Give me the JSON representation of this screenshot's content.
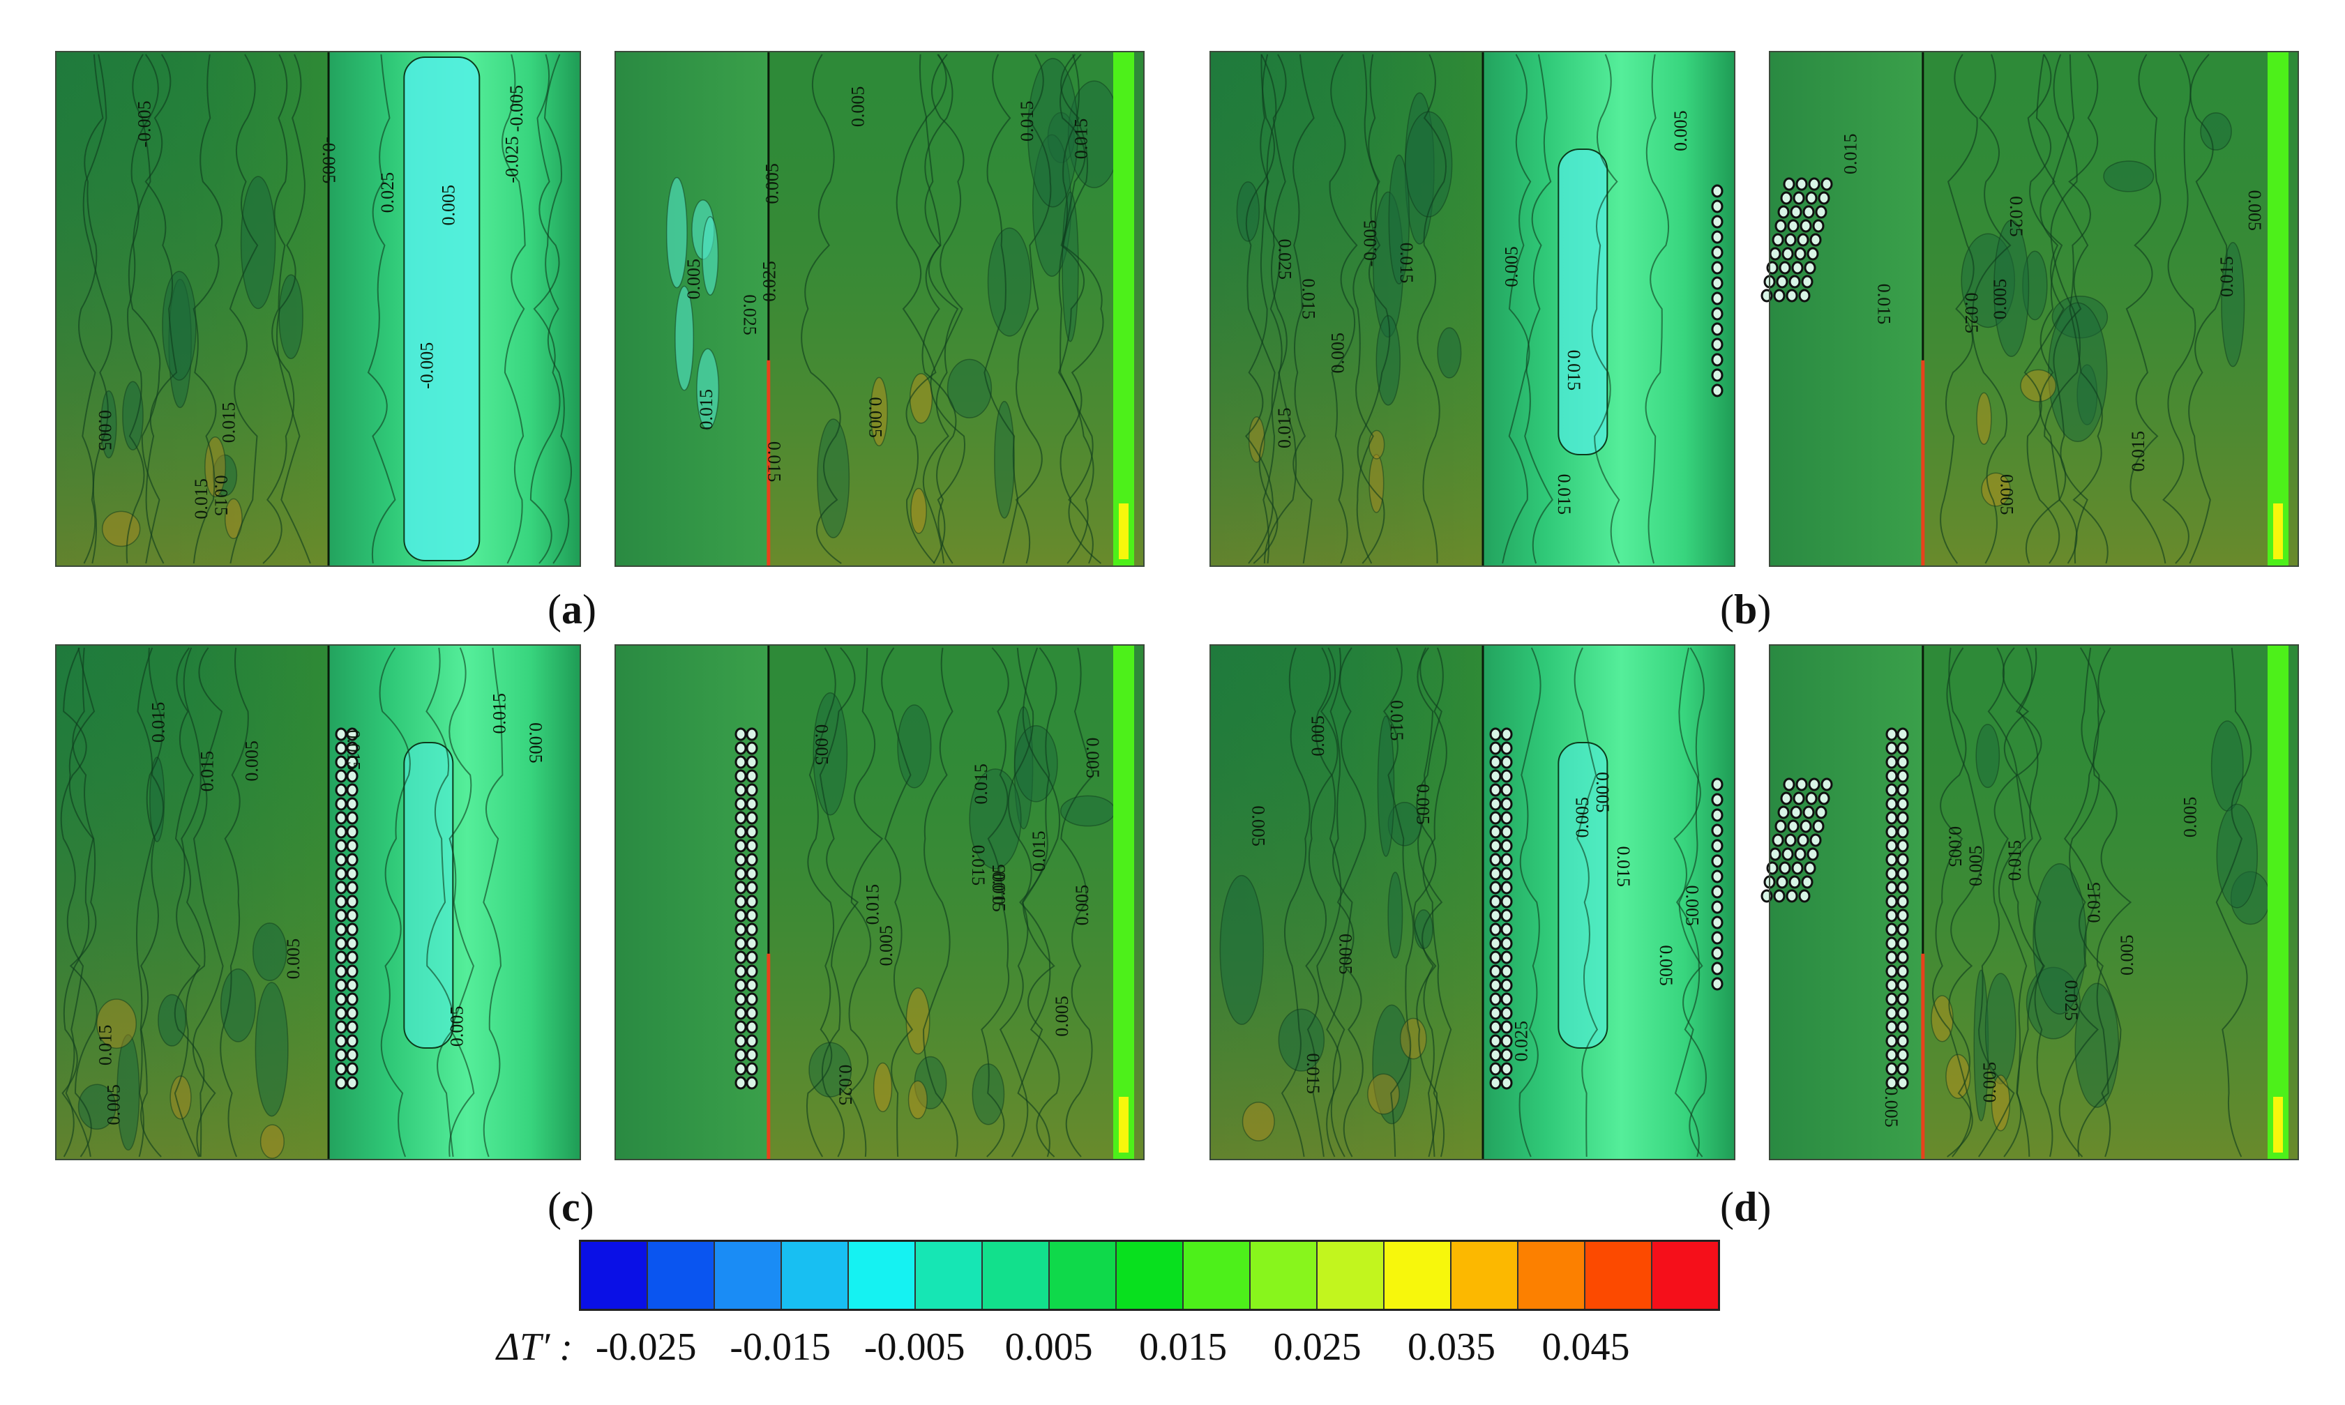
{
  "panel_labels": [
    "a",
    "b",
    "c",
    "d"
  ],
  "legend": {
    "symbol": "ΔT′ :",
    "ticks": [
      "-0.025",
      "-0.015",
      "-0.005",
      "0.005",
      "0.015",
      "0.025",
      "0.035",
      "0.045"
    ],
    "colors": [
      "#0a10e6",
      "#0a55f0",
      "#1a8cf5",
      "#18bff2",
      "#15f2f2",
      "#16e6b4",
      "#12e08c",
      "#0fd94a",
      "#08e01e",
      "#4df01a",
      "#88f51c",
      "#c2f51e",
      "#f7f70c",
      "#fcb800",
      "#fc8000",
      "#fc4a00",
      "#f50f1a"
    ]
  },
  "contour_labels": {
    "a_left": [
      "0.005",
      "-0.005",
      "0.015",
      "0.015",
      "0.015",
      "0.025",
      "-0.025",
      "-0.005",
      "-0.005",
      "-0.005",
      "0.005"
    ],
    "a_right": [
      "0.005",
      "0.015",
      "0.015",
      "0.015",
      "0.025",
      "0.025",
      "0.015",
      "0.005",
      "0.005",
      "0.005"
    ],
    "b_left": [
      "0.005",
      "0.015",
      "0.005",
      "0.015",
      "0.005",
      "0.015",
      "0.015",
      "0.015",
      "0.025",
      "-0.005"
    ],
    "b_right": [
      "0.005",
      "0.005",
      "0.015",
      "0.015",
      "0.025",
      "0.015",
      "0.025",
      "0.015",
      "0.005"
    ],
    "c_left": [
      "0.015",
      "0.005",
      "0.005",
      "0.015",
      "0.015",
      "0.005",
      "0.015",
      "0.005",
      "0.015",
      "0.005"
    ],
    "c_right": [
      "0.015",
      "0.005",
      "0.005",
      "0.015",
      "0.015",
      "0.015",
      "0.005",
      "0.015",
      "0.025",
      "0.005",
      "0.005",
      "0.005"
    ],
    "d_left": [
      "0.005",
      "0.005",
      "0.015",
      "0.005",
      "0.015",
      "0.005",
      "0.015",
      "0.025",
      "0.005",
      "0.005",
      "0.005",
      "0.005"
    ],
    "d_right": [
      "0.005",
      "0.005",
      "0.005",
      "0.005",
      "0.015",
      "0.015",
      "0.025",
      "0.005",
      "0.005"
    ]
  }
}
